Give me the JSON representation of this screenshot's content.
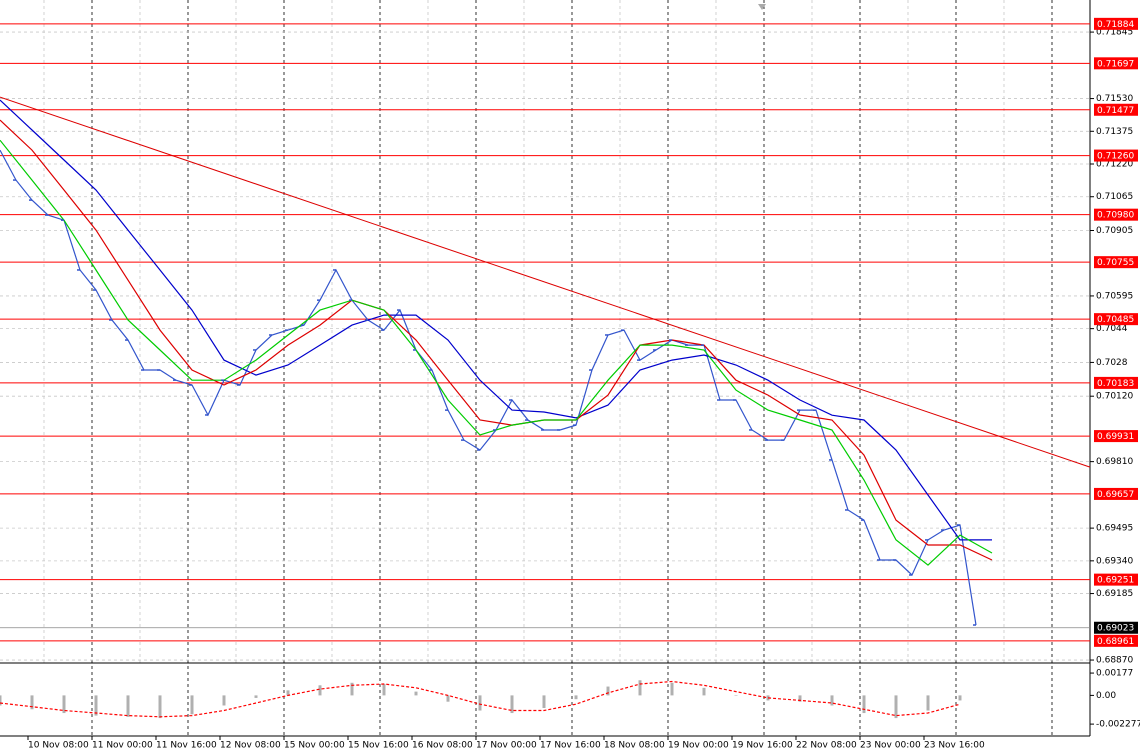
{
  "chart_data": [
    {
      "type": "line",
      "series": [
        {
          "color": "#3355cc",
          "values": [
            0.71286,
            0.71144,
            0.71049,
            0.70978,
            0.70954,
            0.70718,
            0.70623,
            0.70481,
            0.70386,
            0.70244,
            0.70244,
            0.70196,
            0.70173,
            0.70031,
            0.70196,
            0.70173,
            0.70339,
            0.7041,
            0.70433,
            0.70457,
            0.70575,
            0.70718,
            0.70575,
            0.70481,
            0.70433,
            0.70528,
            0.70339,
            0.70244,
            0.70054,
            0.69912,
            0.69865,
            0.6996,
            0.70102,
            0.70007,
            0.6996,
            0.6996,
            0.69983,
            0.70244,
            0.7041,
            0.70433,
            0.70291,
            0.70339,
            0.70386,
            0.70362,
            0.70362,
            0.70102,
            0.70102,
            0.6996,
            0.69912,
            0.69912,
            0.70054,
            0.70054,
            0.69818,
            0.69581,
            0.69533,
            0.69344,
            0.69344,
            0.69273,
            0.69439,
            0.69486,
            0.6951,
            0.69036
          ]
        },
        {
          "color": "#0000cc",
          "values": [
            0.71523,
            0.71381,
            0.71239,
            0.71097,
            0.70907,
            0.70718,
            0.70528,
            0.70291,
            0.7022,
            0.70268,
            0.70362,
            0.70457,
            0.70504,
            0.70504,
            0.70386,
            0.70196,
            0.70054,
            0.70045,
            0.70017,
            0.70078,
            0.70244,
            0.70291,
            0.70315,
            0.70268,
            0.70196,
            0.70102,
            0.7003,
            0.70007,
            0.69865,
            0.69652,
            0.69439,
            0.69439
          ]
        },
        {
          "color": "#dd0000",
          "values": [
            0.71428,
            0.71286,
            0.71097,
            0.70907,
            0.7067,
            0.70433,
            0.70244,
            0.70173,
            0.70244,
            0.70362,
            0.70457,
            0.70575,
            0.70528,
            0.70386,
            0.70196,
            0.70007,
            0.69983,
            0.70007,
            0.70007,
            0.70125,
            0.70362,
            0.70386,
            0.70362,
            0.70196,
            0.70125,
            0.70031,
            0.70007,
            0.69841,
            0.69533,
            0.69415,
            0.69415,
            0.69344
          ]
        },
        {
          "color": "#00cc00",
          "values": [
            0.71333,
            0.71144,
            0.70954,
            0.70718,
            0.70481,
            0.70339,
            0.70196,
            0.70196,
            0.70291,
            0.7041,
            0.70528,
            0.70575,
            0.70528,
            0.70339,
            0.70102,
            0.69936,
            0.69983,
            0.70007,
            0.70007,
            0.70196,
            0.70362,
            0.70362,
            0.70339,
            0.70149,
            0.70054,
            0.70007,
            0.6996,
            0.69723,
            0.69439,
            0.6932,
            0.69462,
            0.69377
          ]
        }
      ],
      "trendline": [
        0.71537,
        0.69784
      ],
      "trendline_color": "#dd0000",
      "levels": [
        0.71884,
        0.71697,
        0.71477,
        {
          "value": 0.7126,
          "label": "0.71260"
        },
        {
          "value": 0.7098,
          "label": "0.70980"
        },
        0.70755,
        0.70485,
        0.70183,
        0.69931,
        0.69657,
        0.69251,
        0.68961
      ],
      "level_color": "#ff0000",
      "current_price": 0.69023,
      "ylim": [
        0.68856,
        0.71997
      ],
      "yticks": [
        0.71845,
        {
          "value": 0.7153,
          "label": "0.71530"
        },
        0.71375,
        {
          "value": 0.7122,
          "label": "0.71220"
        },
        0.71065,
        0.70905,
        0.70595,
        0.7044,
        0.7028,
        {
          "value": 0.7012,
          "label": "0.70120"
        },
        {
          "value": 0.6981,
          "label": "0.69810"
        },
        0.69495,
        {
          "value": 0.6934,
          "label": "0.69340"
        },
        0.69185,
        {
          "value": 0.6887,
          "label": "0.68870"
        }
      ],
      "grid": true,
      "time_labels": [
        "10 Nov 08:00",
        "11 Nov 00:00",
        "11 Nov 16:00",
        "12 Nov 08:00",
        "15 Nov 00:00",
        "15 Nov 16:00",
        "16 Nov 08:00",
        "17 Nov 00:00",
        "17 Nov 16:00",
        "18 Nov 08:00",
        "19 Nov 00:00",
        "19 Nov 16:00",
        "22 Nov 08:00",
        "23 Nov 00:00",
        "23 Nov 16:00"
      ]
    },
    {
      "type": "bar",
      "series": [
        {
          "type": "bar",
          "color": "#b0b0b0",
          "values": [
            -0.0008,
            -0.0011,
            -0.0014,
            -0.0016,
            -0.0017,
            -0.0018,
            -0.0015,
            -0.0008,
            -0.0002,
            0.0004,
            0.0008,
            0.001,
            0.0009,
            0.0003,
            -0.0005,
            -0.0012,
            -0.0014,
            -0.001,
            -0.0003,
            0.0007,
            0.0012,
            0.001,
            0.0006,
            0,
            -0.0004,
            -0.0005,
            -0.0008,
            -0.0014,
            -0.0018,
            -0.0012,
            -0.0004
          ]
        },
        {
          "type": "line",
          "color": "#ff0000",
          "values": [
            -0.0006,
            -0.0009,
            -0.0012,
            -0.0014,
            -0.0016,
            -0.0017,
            -0.0016,
            -0.0012,
            -0.0006,
            0,
            0.0005,
            0.0008,
            0.0009,
            0.0006,
            0,
            -0.0007,
            -0.0012,
            -0.0012,
            -0.0007,
            0.0002,
            0.0009,
            0.0011,
            0.0008,
            0.0003,
            -0.0002,
            -0.0004,
            -0.0006,
            -0.0011,
            -0.0016,
            -0.0014,
            -0.0007
          ]
        }
      ],
      "ylim": [
        -0.00322,
        0.00241
      ],
      "yticks": [
        0.00177,
        {
          "value": 0,
          "label": "0.00"
        },
        -0.002277
      ]
    }
  ]
}
